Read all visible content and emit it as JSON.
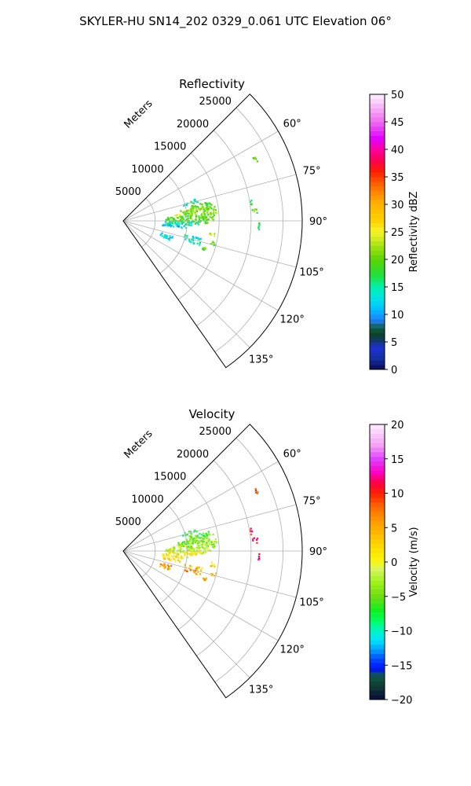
{
  "figure": {
    "suptitle": "SKYLER-HU  SN14_202  0329_0.061 UTC Elevation 06°"
  },
  "chart_data": [
    {
      "type": "heatmap",
      "title": "Reflectivity",
      "radial_axis_label": "Meters",
      "radial_ticks": [
        5000,
        10000,
        15000,
        20000,
        25000
      ],
      "radial_tick_labels": [
        "5000",
        "10000",
        "15000",
        "20000",
        "25000"
      ],
      "rlim": [
        0,
        28000
      ],
      "theta_ticks_deg": [
        60,
        75,
        90,
        105,
        120,
        135
      ],
      "theta_tick_labels": [
        "60°",
        "75°",
        "90°",
        "105°",
        "120°",
        "135°"
      ],
      "theta_range_deg": [
        45,
        145
      ],
      "grid": true,
      "colorbar": {
        "label": "Reflectivity dBZ",
        "range": [
          0,
          50
        ],
        "ticks": [
          0,
          5,
          10,
          15,
          20,
          25,
          30,
          35,
          40,
          45,
          50
        ],
        "tick_labels": [
          "0",
          "5",
          "10",
          "15",
          "20",
          "25",
          "30",
          "35",
          "40",
          "45",
          "50"
        ]
      },
      "cells": [
        {
          "az": 78,
          "r1": 10000,
          "r2": 13800,
          "value": 19
        },
        {
          "az": 80,
          "r1": 9000,
          "r2": 14200,
          "value": 21
        },
        {
          "az": 82,
          "r1": 8600,
          "r2": 14500,
          "value": 20
        },
        {
          "az": 84,
          "r1": 8000,
          "r2": 14600,
          "value": 22
        },
        {
          "az": 86,
          "r1": 6800,
          "r2": 14400,
          "value": 19
        },
        {
          "az": 88,
          "r1": 6500,
          "r2": 14000,
          "value": 20
        },
        {
          "az": 90,
          "r1": 6500,
          "r2": 13500,
          "value": 18
        },
        {
          "az": 92,
          "r1": 6500,
          "r2": 12000,
          "value": 15
        },
        {
          "az": 95,
          "r1": 6000,
          "r2": 10000,
          "value": 12
        },
        {
          "az": 74,
          "r1": 9500,
          "r2": 12000,
          "value": 14
        },
        {
          "az": 108,
          "r1": 6000,
          "r2": 8000,
          "value": 12
        },
        {
          "az": 111,
          "r1": 6000,
          "r2": 7800,
          "value": 13
        },
        {
          "az": 103,
          "r1": 9500,
          "r2": 12500,
          "value": 14
        },
        {
          "az": 106,
          "r1": 10000,
          "r2": 12500,
          "value": 15
        },
        {
          "az": 98,
          "r1": 13500,
          "r2": 14500,
          "value": 24
        },
        {
          "az": 85,
          "r1": 20000,
          "r2": 21000,
          "value": 20
        },
        {
          "az": 81,
          "r1": 20000,
          "r2": 20300,
          "value": 18
        },
        {
          "az": 65,
          "r1": 22500,
          "r2": 22900,
          "value": 20
        },
        {
          "az": 104,
          "r1": 14000,
          "r2": 14800,
          "value": 19
        },
        {
          "az": 109,
          "r1": 13000,
          "r2": 13500,
          "value": 20
        },
        {
          "az": 92,
          "r1": 21000,
          "r2": 21200,
          "value": 16
        }
      ]
    },
    {
      "type": "heatmap",
      "title": "Velocity",
      "radial_axis_label": "Meters",
      "radial_ticks": [
        5000,
        10000,
        15000,
        20000,
        25000
      ],
      "radial_tick_labels": [
        "5000",
        "10000",
        "15000",
        "20000",
        "25000"
      ],
      "rlim": [
        0,
        28000
      ],
      "theta_ticks_deg": [
        60,
        75,
        90,
        105,
        120,
        135
      ],
      "theta_tick_labels": [
        "60°",
        "75°",
        "90°",
        "105°",
        "120°",
        "135°"
      ],
      "theta_range_deg": [
        45,
        145
      ],
      "grid": true,
      "colorbar": {
        "label": "Velocity (m/s)",
        "range": [
          -20,
          20
        ],
        "ticks": [
          -20,
          -15,
          -10,
          -5,
          0,
          5,
          10,
          15,
          20
        ],
        "tick_labels": [
          "−20",
          "−15",
          "−10",
          "−5",
          "0",
          "5",
          "10",
          "15",
          "20"
        ]
      },
      "cells": [
        {
          "az": 74,
          "r1": 9500,
          "r2": 12000,
          "value": -7
        },
        {
          "az": 78,
          "r1": 10000,
          "r2": 13800,
          "value": -6
        },
        {
          "az": 80,
          "r1": 9000,
          "r2": 14200,
          "value": -5
        },
        {
          "az": 82,
          "r1": 8600,
          "r2": 14500,
          "value": -4
        },
        {
          "az": 84,
          "r1": 8000,
          "r2": 14600,
          "value": -3
        },
        {
          "az": 86,
          "r1": 6800,
          "r2": 14400,
          "value": -3
        },
        {
          "az": 88,
          "r1": 6500,
          "r2": 14000,
          "value": -2
        },
        {
          "az": 90,
          "r1": 6500,
          "r2": 13500,
          "value": -1
        },
        {
          "az": 92,
          "r1": 6500,
          "r2": 12000,
          "value": 1
        },
        {
          "az": 95,
          "r1": 6000,
          "r2": 10000,
          "value": 1
        },
        {
          "az": 99,
          "r1": 6000,
          "r2": 9000,
          "value": 2
        },
        {
          "az": 108,
          "r1": 6000,
          "r2": 7800,
          "value": 6
        },
        {
          "az": 111,
          "r1": 6000,
          "r2": 7800,
          "value": 5
        },
        {
          "az": 103,
          "r1": 9500,
          "r2": 12500,
          "value": 3
        },
        {
          "az": 106,
          "r1": 10000,
          "r2": 12500,
          "value": 6
        },
        {
          "az": 98,
          "r1": 13500,
          "r2": 14500,
          "value": 3
        },
        {
          "az": 104,
          "r1": 14000,
          "r2": 14800,
          "value": 3
        },
        {
          "az": 109,
          "r1": 13000,
          "r2": 13500,
          "value": 5
        },
        {
          "az": 85,
          "r1": 20000,
          "r2": 21000,
          "value": 11
        },
        {
          "az": 81,
          "r1": 20000,
          "r2": 20300,
          "value": 10
        },
        {
          "az": 65,
          "r1": 22500,
          "r2": 22900,
          "value": 8
        },
        {
          "az": 92,
          "r1": 21000,
          "r2": 21200,
          "value": 14
        }
      ]
    }
  ]
}
